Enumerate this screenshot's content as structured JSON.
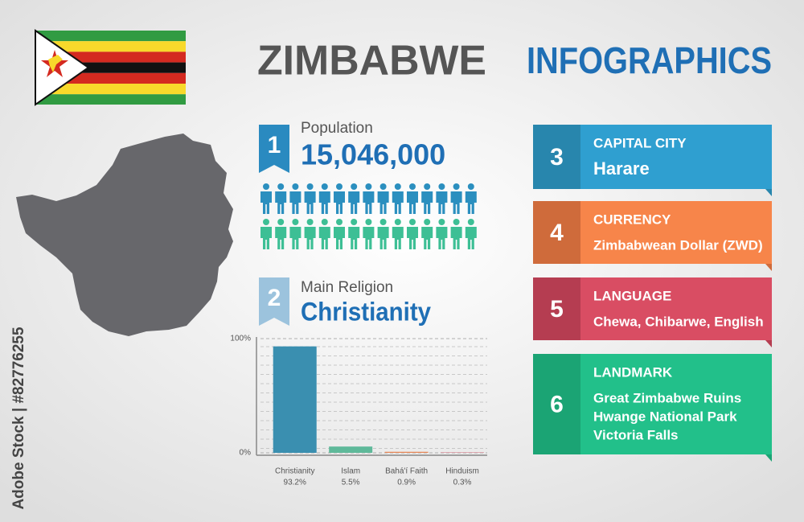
{
  "header": {
    "title": "ZIMBABWE",
    "subtitle": "INFOGRAPHICS"
  },
  "watermark": "Adobe Stock | #82776255",
  "population": {
    "number": "1",
    "label": "Population",
    "value": "15,046,000"
  },
  "religion": {
    "number": "2",
    "label": "Main Religion",
    "value": "Christianity"
  },
  "chart_data": {
    "type": "bar",
    "categories": [
      "Christianity",
      "Islam",
      "Bahá'í Faith",
      "Hinduism"
    ],
    "values": [
      93.2,
      5.5,
      0.9,
      0.3
    ],
    "value_labels": [
      "93.2%",
      "5.5%",
      "0.9%",
      "0.3%"
    ],
    "colors": [
      "#3a8fb0",
      "#5fb99a",
      "#e88a5a",
      "#d25567"
    ],
    "ylim": [
      0,
      100
    ],
    "yticks": [
      {
        "value": 0,
        "label": "0%"
      },
      {
        "value": 100,
        "label": "100%"
      }
    ],
    "grid": true
  },
  "cards": [
    {
      "number": "3",
      "title": "CAPITAL CITY",
      "lines": [
        "Harare"
      ],
      "color": "#2f9fd0",
      "dark": "#2886ad"
    },
    {
      "number": "4",
      "title": "CURRENCY",
      "lines": [
        "Zimbabwean Dollar (ZWD)"
      ],
      "color": "#f7854a",
      "dark": "#cf6b3b"
    },
    {
      "number": "5",
      "title": "LANGUAGE",
      "lines": [
        "Chewa, Chibarwe, English"
      ],
      "color": "#d94d63",
      "dark": "#b53d51"
    },
    {
      "number": "6",
      "title": "LANDMARK",
      "lines": [
        "Great Zimbabwe Ruins",
        "Hwange National Park",
        "Victoria Falls"
      ],
      "color": "#22c08a",
      "dark": "#1ba474"
    }
  ]
}
